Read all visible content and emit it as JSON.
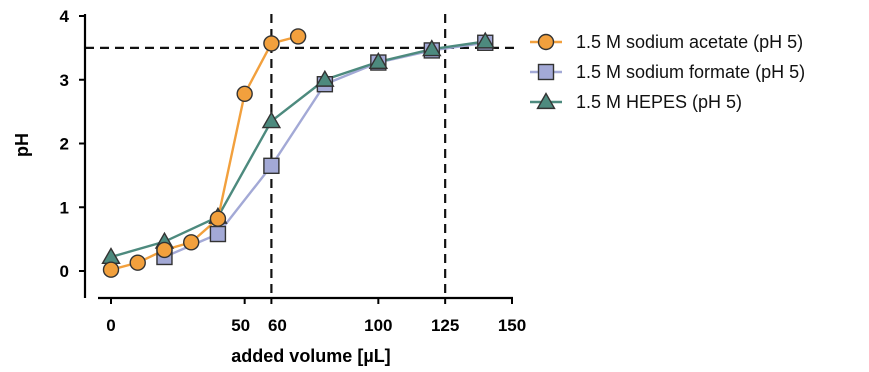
{
  "chart_data": {
    "type": "line",
    "title": "",
    "xlabel": "added volume [µL]",
    "ylabel": "pH",
    "xlim": [
      0,
      150
    ],
    "ylim": [
      0,
      4
    ],
    "x_ticks": [
      {
        "value": 0,
        "label": "0"
      },
      {
        "value": 50,
        "label": "50"
      },
      {
        "value": 60,
        "label": "60"
      },
      {
        "value": 100,
        "label": "100"
      },
      {
        "value": 125,
        "label": "125"
      },
      {
        "value": 150,
        "label": "150"
      }
    ],
    "y_ticks": [
      {
        "value": 0,
        "label": "0"
      },
      {
        "value": 1,
        "label": "1"
      },
      {
        "value": 2,
        "label": "2"
      },
      {
        "value": 3,
        "label": "3"
      },
      {
        "value": 4,
        "label": "4"
      }
    ],
    "reference_lines": {
      "vertical": [
        60,
        125
      ],
      "horizontal": [
        3.5
      ],
      "style": "dashed"
    },
    "grid": false,
    "legend_position": "right",
    "series": [
      {
        "name": "1.5 M sodium acetate (pH 5)",
        "color": "#f2a03d",
        "marker": "circle",
        "x": [
          0,
          10,
          20,
          30,
          40,
          50,
          60,
          70
        ],
        "y": [
          0.02,
          0.13,
          0.33,
          0.45,
          0.82,
          2.78,
          3.57,
          3.68
        ]
      },
      {
        "name": "1.5 M sodium formate (pH 5)",
        "color": "#a3a9d6",
        "marker": "square",
        "x": [
          20,
          40,
          60,
          80,
          100,
          120,
          140
        ],
        "y": [
          0.22,
          0.58,
          1.65,
          2.93,
          3.27,
          3.46,
          3.58
        ]
      },
      {
        "name": "1.5 M HEPES (pH 5)",
        "color": "#4d8a7e",
        "marker": "triangle",
        "x": [
          0,
          20,
          40,
          60,
          80,
          100,
          120,
          140
        ],
        "y": [
          0.22,
          0.46,
          0.85,
          2.35,
          3.0,
          3.28,
          3.48,
          3.6
        ]
      }
    ]
  }
}
